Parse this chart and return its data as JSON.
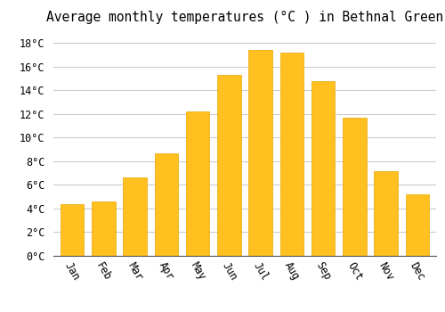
{
  "months": [
    "Jan",
    "Feb",
    "Mar",
    "Apr",
    "May",
    "Jun",
    "Jul",
    "Aug",
    "Sep",
    "Oct",
    "Nov",
    "Dec"
  ],
  "temperatures": [
    4.4,
    4.6,
    6.6,
    8.7,
    12.2,
    15.3,
    17.4,
    17.2,
    14.8,
    11.7,
    7.2,
    5.2
  ],
  "bar_color": "#FFC020",
  "bar_edge_color": "#E8A800",
  "title": "Average monthly temperatures (°C ) in Bethnal Green",
  "ylim": [
    0,
    19
  ],
  "ytick_interval": 2,
  "background_color": "#FFFFFF",
  "grid_color": "#CCCCCC",
  "title_fontsize": 10.5,
  "tick_fontsize": 8.5,
  "font_family": "monospace"
}
